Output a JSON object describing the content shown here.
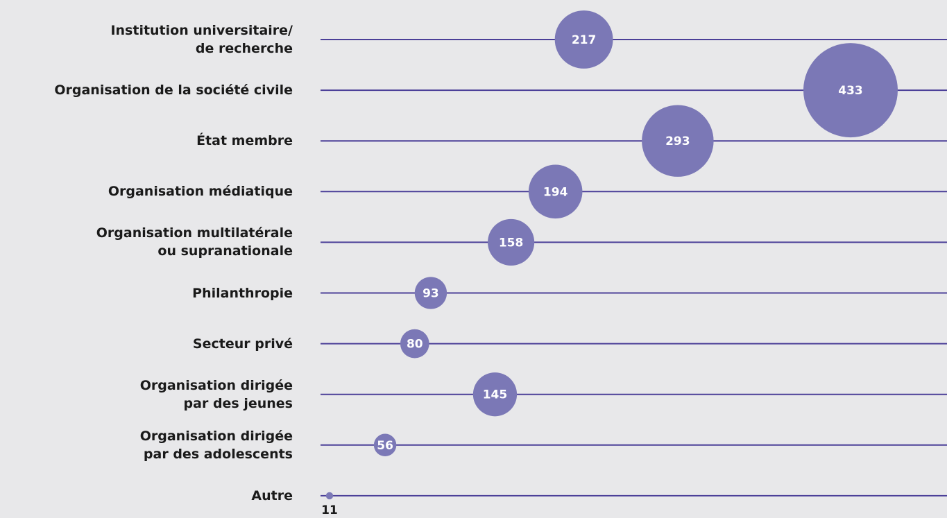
{
  "chart_data": {
    "type": "bubble",
    "categories": [
      "Institution universitaire/\nde recherche",
      "Organisation de la société civile",
      "État membre",
      "Organisation médiatique",
      "Organisation multilatérale\nou supranationale",
      "Philanthropie",
      "Secteur privé",
      "Organisation dirigée\npar des jeunes",
      "Organisation dirigée\npar des adolescents",
      "Autre"
    ],
    "values": [
      217,
      433,
      293,
      194,
      158,
      93,
      80,
      145,
      56,
      11
    ],
    "color": "#7b78b6",
    "line_color": "#4b3f98"
  }
}
